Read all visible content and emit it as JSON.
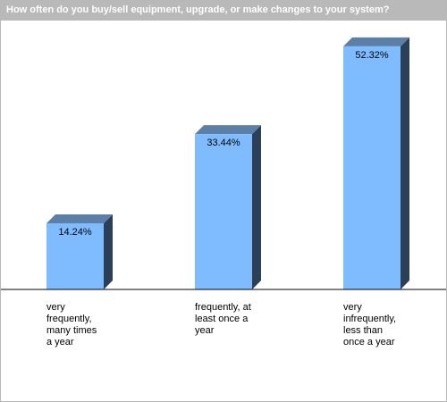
{
  "chart_data": {
    "type": "bar",
    "title": "How often do you buy/sell equipment, upgrade, or make changes to your system?",
    "categories": [
      "very frequently, many times a year",
      "frequently, at least once a year",
      "very infrequently, less than once a year"
    ],
    "category_lines": [
      [
        "very",
        "frequently,",
        "many times",
        "a year"
      ],
      [
        "frequently, at",
        "least once a",
        "year"
      ],
      [
        "very",
        "infrequently,",
        "less than",
        "once a year"
      ]
    ],
    "values": [
      14.24,
      33.44,
      52.32
    ],
    "value_labels": [
      "14.24%",
      "33.44%",
      "52.32%"
    ],
    "ylim": [
      0,
      60
    ],
    "grid": false,
    "legend": "none",
    "colors": {
      "bar_front": "#7fbcff",
      "bar_top": "#5c7fa8",
      "bar_side": "#2b3f57",
      "title_bg": "#b9b9b9"
    }
  }
}
